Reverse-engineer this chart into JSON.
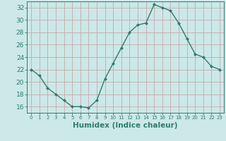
{
  "x": [
    0,
    1,
    2,
    3,
    4,
    5,
    6,
    7,
    8,
    9,
    10,
    11,
    12,
    13,
    14,
    15,
    16,
    17,
    18,
    19,
    20,
    21,
    22,
    23
  ],
  "y": [
    22,
    21,
    19,
    18,
    17,
    16,
    16,
    15.8,
    17,
    20.5,
    23,
    25.5,
    28,
    29.2,
    29.5,
    32.5,
    32,
    31.5,
    29.5,
    27,
    24.5,
    24,
    22.5,
    22
  ],
  "line_color": "#2e7d6e",
  "marker": "D",
  "marker_size": 2.0,
  "line_width": 1.0,
  "xlabel": "Humidex (Indice chaleur)",
  "xlim": [
    -0.5,
    23.5
  ],
  "ylim": [
    15,
    33
  ],
  "yticks": [
    16,
    18,
    20,
    22,
    24,
    26,
    28,
    30,
    32
  ],
  "xticks": [
    0,
    1,
    2,
    3,
    4,
    5,
    6,
    7,
    8,
    9,
    10,
    11,
    12,
    13,
    14,
    15,
    16,
    17,
    18,
    19,
    20,
    21,
    22,
    23
  ],
  "grid_color": "#c8a8a8",
  "bg_color": "#cce8e8",
  "tick_color": "#2e7d6e",
  "label_color": "#2e7d6e",
  "xlabel_fontsize": 7.5,
  "ytick_fontsize": 6.5,
  "xtick_fontsize": 5.0
}
